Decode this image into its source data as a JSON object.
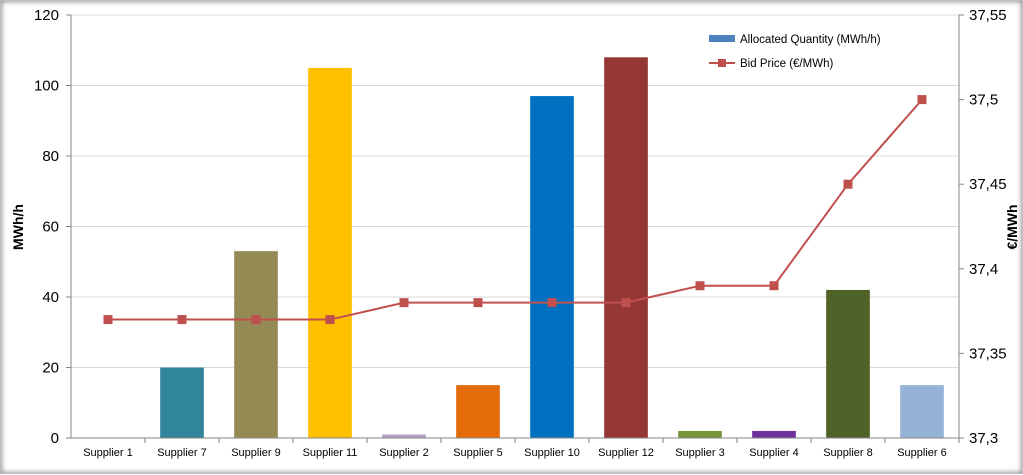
{
  "chart_data": {
    "type": "bar",
    "categories": [
      "Supplier 1",
      "Supplier 7",
      "Supplier 9",
      "Supplier 11",
      "Supplier 2",
      "Supplier 5",
      "Supplier 10",
      "Supplier 12",
      "Supplier 3",
      "Supplier 4",
      "Supplier 8",
      "Supplier 6"
    ],
    "series": [
      {
        "name": "Allocated Quantity (MWh/h)",
        "type": "bar",
        "axis": "left",
        "values": [
          0,
          20,
          53,
          105,
          1,
          15,
          97,
          108,
          2,
          2,
          42,
          15
        ],
        "colors": [
          "#4f81bd",
          "#31859c",
          "#948a54",
          "#ffc000",
          "#b2a1c7",
          "#e46c0a",
          "#0070c0",
          "#953735",
          "#77933c",
          "#7030a0",
          "#4f6228",
          "#95b3d7"
        ],
        "legend_color": "#4f81bd"
      },
      {
        "name": "Bid Price (€/MWh)",
        "type": "line",
        "axis": "right",
        "values": [
          37.37,
          37.37,
          37.37,
          37.37,
          37.38,
          37.38,
          37.38,
          37.38,
          37.39,
          37.39,
          37.45,
          37.5
        ],
        "color": "#c0504d",
        "marker": "square"
      }
    ],
    "ylabel": "MWh/h",
    "y2label": "€/MWh",
    "ylim": [
      0,
      120
    ],
    "yticks": [
      0,
      20,
      40,
      60,
      80,
      100,
      120
    ],
    "y2lim": [
      37.3,
      37.55
    ],
    "y2ticks": [
      "37,3",
      "37,35",
      "37,4",
      "37,45",
      "37,5",
      "37,55"
    ],
    "grid": true,
    "legend_position": "top-right"
  }
}
